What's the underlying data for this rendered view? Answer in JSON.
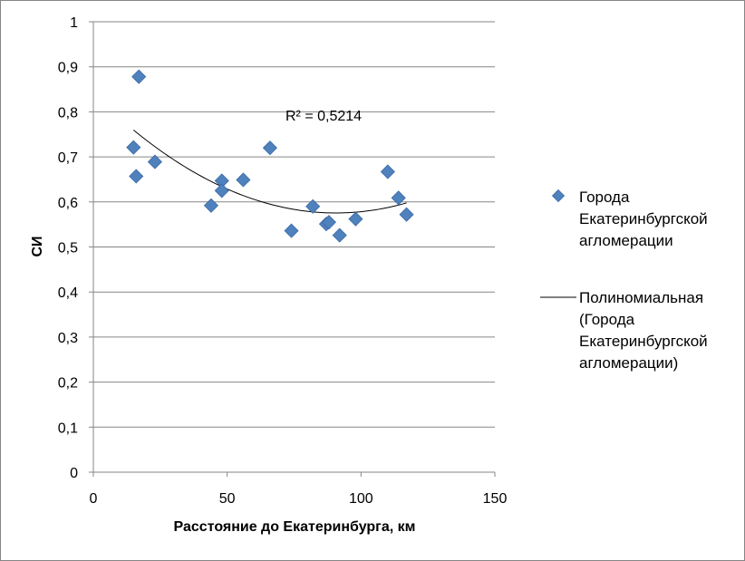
{
  "chart_data": {
    "type": "scatter",
    "xlabel": "Расстояние до Екатеринбурга, км",
    "ylabel": "СИ",
    "xlim": [
      0,
      150
    ],
    "ylim": [
      0,
      1
    ],
    "x_ticks": [
      "0",
      "50",
      "100",
      "150"
    ],
    "y_ticks": [
      "0",
      "0,1",
      "0,2",
      "0,3",
      "0,4",
      "0,5",
      "0,6",
      "0,7",
      "0,8",
      "0,9",
      "1"
    ],
    "grid": "horizontal",
    "legend_position": "right",
    "series": [
      {
        "name": "Города Екатеринбургской агломерации",
        "name_lines": [
          "Города",
          "Екатеринбургской",
          "агломерации"
        ],
        "marker": "diamond",
        "color": "#4f81bd",
        "points": [
          {
            "x": 17,
            "y": 0.878
          },
          {
            "x": 15,
            "y": 0.721
          },
          {
            "x": 16,
            "y": 0.657
          },
          {
            "x": 23,
            "y": 0.689
          },
          {
            "x": 44,
            "y": 0.592
          },
          {
            "x": 48,
            "y": 0.647
          },
          {
            "x": 48,
            "y": 0.625
          },
          {
            "x": 56,
            "y": 0.649
          },
          {
            "x": 66,
            "y": 0.72
          },
          {
            "x": 74,
            "y": 0.536
          },
          {
            "x": 82,
            "y": 0.59
          },
          {
            "x": 87,
            "y": 0.551
          },
          {
            "x": 88,
            "y": 0.555
          },
          {
            "x": 92,
            "y": 0.526
          },
          {
            "x": 98,
            "y": 0.562
          },
          {
            "x": 110,
            "y": 0.667
          },
          {
            "x": 114,
            "y": 0.609
          },
          {
            "x": 117,
            "y": 0.572
          }
        ]
      }
    ],
    "trendline": {
      "name": "Полиномиальная (Города Екатеринбургской агломерации)",
      "name_lines": [
        "Полиномиальная",
        "(Города",
        "Екатеринбургской",
        "агломерации)"
      ],
      "type": "polynomial",
      "color": "#000000",
      "x_range": [
        15,
        117
      ],
      "coefficients": [
        0.8399,
        -0.005833,
        3.217e-05
      ],
      "r_squared_label": "R² = 0,5214"
    }
  }
}
